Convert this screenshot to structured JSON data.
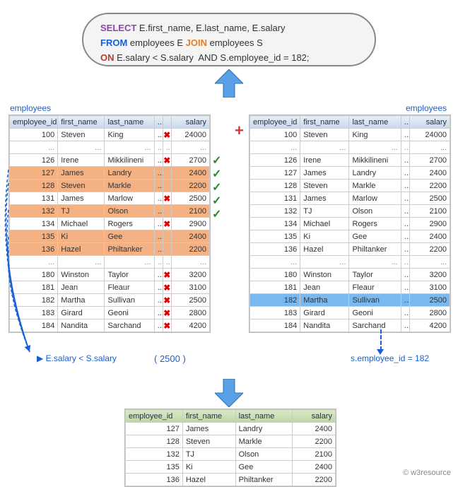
{
  "sql": {
    "select_kw": "SELECT",
    "select_cols": " E.first_name, E.last_name, E.salary",
    "from_kw": "FROM",
    "from_txt": " employees E ",
    "join_kw": "JOIN",
    "join_txt": " employees S",
    "on_kw": "ON",
    "on_txt": " E.salary < S.salary  AND S.employee_id = 182;"
  },
  "labels": {
    "left_title": "employees",
    "right_title": "employees",
    "annot_left": "E.salary < S.salary",
    "annot_mid": "( 2500 )",
    "annot_right": "s.employee_id = 182",
    "footer": "© w3resource"
  },
  "columns": {
    "id": "employee_id",
    "fn": "first_name",
    "ln": "last_name",
    "sal": "salary",
    "dots": "..."
  },
  "left_rows": [
    {
      "id": "100",
      "fn": "Steven",
      "ln": "King",
      "sal": "24000",
      "hl": false,
      "mark": "x",
      "type": "row"
    },
    {
      "type": "ellips"
    },
    {
      "id": "126",
      "fn": "Irene",
      "ln": "Mikkilineni",
      "sal": "2700",
      "hl": false,
      "mark": "x",
      "type": "row"
    },
    {
      "id": "127",
      "fn": "James",
      "ln": "Landry",
      "sal": "2400",
      "hl": true,
      "mark": "",
      "type": "row"
    },
    {
      "id": "128",
      "fn": "Steven",
      "ln": "Markle",
      "sal": "2200",
      "hl": true,
      "mark": "",
      "type": "row"
    },
    {
      "id": "131",
      "fn": "James",
      "ln": "Marlow",
      "sal": "2500",
      "hl": false,
      "mark": "x",
      "type": "row"
    },
    {
      "id": "132",
      "fn": "TJ",
      "ln": "Olson",
      "sal": "2100",
      "hl": true,
      "mark": "",
      "type": "row"
    },
    {
      "id": "134",
      "fn": "Michael",
      "ln": "Rogers",
      "sal": "2900",
      "hl": false,
      "mark": "x",
      "type": "row"
    },
    {
      "id": "135",
      "fn": "Ki",
      "ln": "Gee",
      "sal": "2400",
      "hl": true,
      "mark": "",
      "type": "row"
    },
    {
      "id": "136",
      "fn": "Hazel",
      "ln": "Philtanker",
      "sal": "2200",
      "hl": true,
      "mark": "",
      "type": "row"
    },
    {
      "type": "ellips"
    },
    {
      "id": "180",
      "fn": "Winston",
      "ln": "Taylor",
      "sal": "3200",
      "hl": false,
      "mark": "x",
      "type": "row"
    },
    {
      "id": "181",
      "fn": "Jean",
      "ln": "Fleaur",
      "sal": "3100",
      "hl": false,
      "mark": "x",
      "type": "row"
    },
    {
      "id": "182",
      "fn": "Martha",
      "ln": "Sullivan",
      "sal": "2500",
      "hl": false,
      "mark": "x",
      "type": "row"
    },
    {
      "id": "183",
      "fn": "Girard",
      "ln": "Geoni",
      "sal": "2800",
      "hl": false,
      "mark": "x",
      "type": "row"
    },
    {
      "id": "184",
      "fn": "Nandita",
      "ln": "Sarchand",
      "sal": "4200",
      "hl": false,
      "mark": "x",
      "type": "row"
    }
  ],
  "right_rows": [
    {
      "id": "100",
      "fn": "Steven",
      "ln": "King",
      "sal": "24000",
      "hl": false,
      "type": "row"
    },
    {
      "type": "ellips"
    },
    {
      "id": "126",
      "fn": "Irene",
      "ln": "Mikkilineni",
      "sal": "2700",
      "hl": false,
      "type": "row"
    },
    {
      "id": "127",
      "fn": "James",
      "ln": "Landry",
      "sal": "2400",
      "hl": false,
      "type": "row"
    },
    {
      "id": "128",
      "fn": "Steven",
      "ln": "Markle",
      "sal": "2200",
      "hl": false,
      "type": "row"
    },
    {
      "id": "131",
      "fn": "James",
      "ln": "Marlow",
      "sal": "2500",
      "hl": false,
      "type": "row"
    },
    {
      "id": "132",
      "fn": "TJ",
      "ln": "Olson",
      "sal": "2100",
      "hl": false,
      "type": "row"
    },
    {
      "id": "134",
      "fn": "Michael",
      "ln": "Rogers",
      "sal": "2900",
      "hl": false,
      "type": "row"
    },
    {
      "id": "135",
      "fn": "Ki",
      "ln": "Gee",
      "sal": "2400",
      "hl": false,
      "type": "row"
    },
    {
      "id": "136",
      "fn": "Hazel",
      "ln": "Philtanker",
      "sal": "2200",
      "hl": false,
      "type": "row"
    },
    {
      "type": "ellips"
    },
    {
      "id": "180",
      "fn": "Winston",
      "ln": "Taylor",
      "sal": "3200",
      "hl": false,
      "type": "row"
    },
    {
      "id": "181",
      "fn": "Jean",
      "ln": "Fleaur",
      "sal": "3100",
      "hl": false,
      "type": "row"
    },
    {
      "id": "182",
      "fn": "Martha",
      "ln": "Sullivan",
      "sal": "2500",
      "hl": true,
      "type": "row"
    },
    {
      "id": "183",
      "fn": "Girard",
      "ln": "Geoni",
      "sal": "2800",
      "hl": false,
      "type": "row"
    },
    {
      "id": "184",
      "fn": "Nandita",
      "ln": "Sarchand",
      "sal": "4200",
      "hl": false,
      "type": "row"
    }
  ],
  "result_rows": [
    {
      "id": "127",
      "fn": "James",
      "ln": "Landry",
      "sal": "2400"
    },
    {
      "id": "128",
      "fn": "Steven",
      "ln": "Markle",
      "sal": "2200"
    },
    {
      "id": "132",
      "fn": "TJ",
      "ln": "Olson",
      "sal": "2100"
    },
    {
      "id": "135",
      "fn": "Ki",
      "ln": "Gee",
      "sal": "2400"
    },
    {
      "id": "136",
      "fn": "Hazel",
      "ln": "Philtanker",
      "sal": "2200"
    }
  ],
  "checkmarks": [
    "✓",
    "✓",
    "✓",
    "✓",
    "✓"
  ],
  "colors": {
    "highlight_orange": "#f4b183",
    "highlight_blue": "#7ab8f0",
    "header_blue": "#c9d8ec",
    "header_green": "#bfd6a6",
    "arrow_fill": "#5aa0e6",
    "link_blue": "#1560d6",
    "x_red": "#d00",
    "check_green": "#2a8a2a"
  }
}
